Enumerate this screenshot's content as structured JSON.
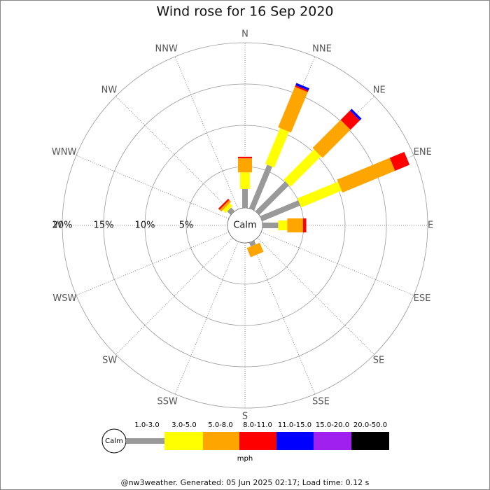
{
  "chart_data": {
    "type": "windrose",
    "title": "Wind rose for 16 Sep 2020",
    "directions": [
      "N",
      "NNE",
      "NE",
      "ENE",
      "E",
      "ESE",
      "SE",
      "SSE",
      "S",
      "SSW",
      "SW",
      "WSW",
      "W",
      "WNW",
      "NW",
      "NNW"
    ],
    "calm_label": "Calm",
    "rlim": [
      0,
      20
    ],
    "rticks": [
      {
        "value": 5,
        "label": "5%"
      },
      {
        "value": 10,
        "label": "10%"
      },
      {
        "value": 15,
        "label": "15%"
      },
      {
        "value": 20,
        "label": "20%"
      }
    ],
    "unit": "mph",
    "series": [
      {
        "name": "1.0-3.0",
        "color": "#999999",
        "values": [
          2.3,
          5.7,
          5.1,
          5.0,
          1.9,
          0,
          0,
          0.5,
          0,
          0,
          0,
          0,
          0,
          0,
          0.6,
          0
        ]
      },
      {
        "name": "3.0-5.0",
        "color": "#ffff00",
        "values": [
          2.0,
          4.7,
          5.2,
          5.3,
          1.1,
          0,
          0,
          0,
          0,
          0,
          0,
          0,
          0,
          0,
          0.5,
          0
        ]
      },
      {
        "name": "5.0-8.0",
        "color": "#ffa500",
        "values": [
          1.7,
          5.3,
          4.8,
          6.9,
          1.9,
          0,
          0,
          1.2,
          0,
          0,
          0,
          0,
          0,
          0,
          0.3,
          0
        ]
      },
      {
        "name": "8.0-11.0",
        "color": "#ff0000",
        "values": [
          0.2,
          0.2,
          1.6,
          1.9,
          0.4,
          0,
          0,
          0,
          0,
          0,
          0,
          0,
          0,
          0,
          0.2,
          0
        ]
      },
      {
        "name": "11.0-15.0",
        "color": "#0000ff",
        "values": [
          0,
          0.3,
          0.3,
          0,
          0,
          0,
          0,
          0,
          0,
          0,
          0,
          0,
          0,
          0,
          0,
          0
        ]
      },
      {
        "name": "15.0-20.0",
        "color": "#a020f0",
        "values": [
          0,
          0,
          0,
          0,
          0,
          0,
          0,
          0,
          0,
          0,
          0,
          0,
          0,
          0,
          0,
          0
        ]
      },
      {
        "name": "20.0-50.0",
        "color": "#000000",
        "values": [
          0,
          0,
          0,
          0,
          0,
          0,
          0,
          0,
          0,
          0,
          0,
          0,
          0,
          0,
          0,
          0
        ]
      }
    ],
    "footer": "@nw3weather. Generated: 05 Jun 2025 02:17; Load time: 0.12 s"
  }
}
